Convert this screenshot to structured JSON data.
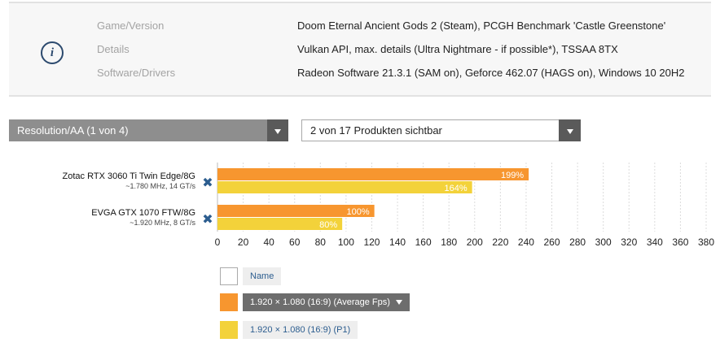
{
  "info": {
    "icon": "info-icon",
    "rows": [
      {
        "label": "Game/Version",
        "value": "Doom Eternal Ancient Gods 2 (Steam), PCGH Benchmark 'Castle Greenstone'"
      },
      {
        "label": "Details",
        "value": "Vulkan API, max. details (Ultra Nightmare - if possible*), TSSAA 8TX"
      },
      {
        "label": "Software/Drivers",
        "value": "Radeon Software 21.3.1 (SAM on), Geforce 462.07 (HAGS on), Windows 10 20H2"
      }
    ]
  },
  "selects": {
    "resolution": "Resolution/AA (1 von 4)",
    "products": "2 von 17 Produkten sichtbar"
  },
  "chart_data": {
    "type": "bar",
    "orientation": "horizontal",
    "categories": [
      {
        "name": "Zotac RTX 3060 Ti Twin Edge/8G",
        "sub": "~1.780 MHz, 14 GT/s"
      },
      {
        "name": "EVGA GTX 1070 FTW/8G",
        "sub": "~1.920 MHz, 8 GT/s"
      }
    ],
    "series": [
      {
        "name": "1.920 × 1.080 (16:9) (Average Fps)",
        "color": "#f7962f",
        "values": [
          242,
          122
        ],
        "labels": [
          "199%",
          "100%"
        ]
      },
      {
        "name": "1.920 × 1.080 (16:9) (P1)",
        "color": "#f3d23a",
        "values": [
          198,
          97
        ],
        "labels": [
          "164%",
          "80%"
        ]
      }
    ],
    "xlim": [
      0,
      380
    ],
    "xticks": [
      0,
      20,
      40,
      60,
      80,
      100,
      120,
      140,
      160,
      180,
      200,
      220,
      240,
      260,
      280,
      300,
      320,
      340,
      360,
      380
    ],
    "grid": true,
    "remove_icon": "close-icon",
    "remove_color": "#2c5d8f"
  },
  "legend": {
    "name_label": "Name",
    "items": [
      {
        "label": "1.920 × 1.080 (16:9) (Average Fps)",
        "color": "#f7962f",
        "active": true
      },
      {
        "label": "1.920 × 1.080 (16:9) (P1)",
        "color": "#f3d23a",
        "active": false
      }
    ]
  }
}
